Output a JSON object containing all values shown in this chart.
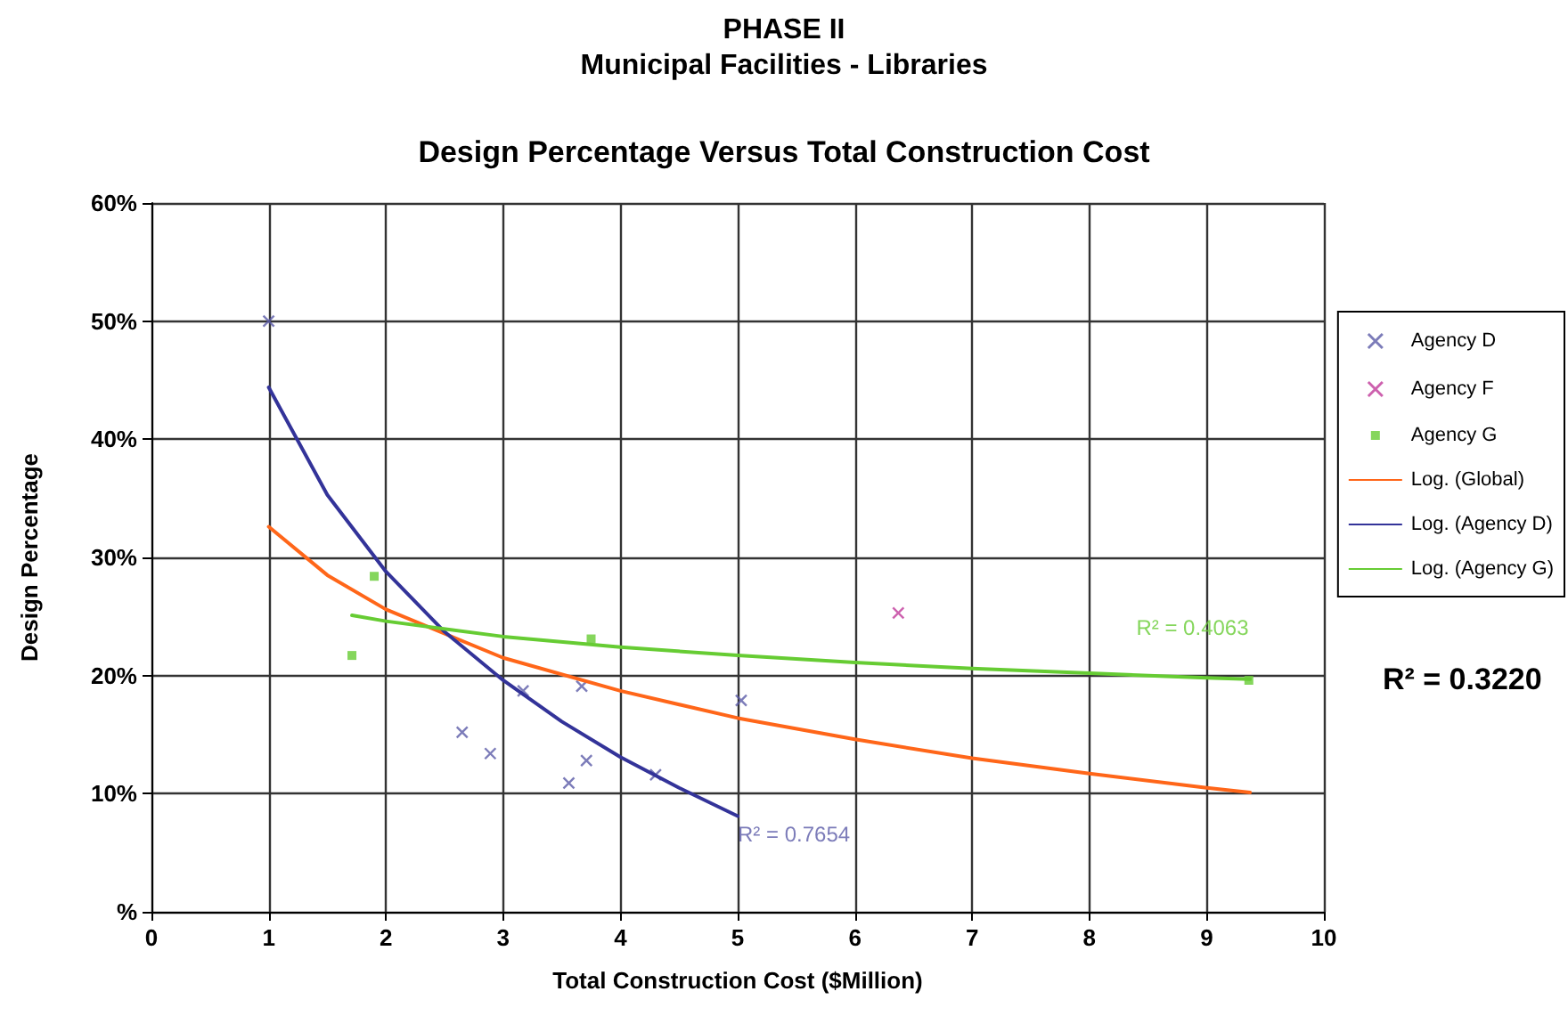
{
  "chart_data": {
    "type": "scatter",
    "title": "PHASE II",
    "subtitle": "Municipal Facilities - Libraries",
    "xlabel": "Total Construction Cost ($Million)",
    "ylabel": "Design Percentage",
    "xlim": [
      0,
      10
    ],
    "xticks": [
      0,
      1,
      2,
      3,
      4,
      5,
      6,
      7,
      8,
      9,
      10
    ],
    "ylim": [
      0,
      60
    ],
    "yticks": [
      {
        "value": 0,
        "label": "%"
      },
      {
        "value": 10,
        "label": "10%"
      },
      {
        "value": 20,
        "label": "20%"
      },
      {
        "value": 30,
        "label": "30%"
      },
      {
        "value": 40,
        "label": "40%"
      },
      {
        "value": 50,
        "label": "50%"
      },
      {
        "value": 60,
        "label": "60%"
      }
    ],
    "grid": true,
    "legend": "right",
    "annotations": [
      "Design Percentage Versus Total Construction Cost",
      "R² = 0.3220",
      {
        "text": "R² = 0.7654",
        "x": 5,
        "y": 8.1
      },
      {
        "text": "R² = 0.4063",
        "x": 8.4,
        "y": 20.1
      }
    ],
    "series": [
      {
        "name": "Agency D",
        "marker": "cross",
        "color": "#5b5ba8",
        "x": [
          1.0,
          2.65,
          2.89,
          3.17,
          3.56,
          3.67,
          3.71,
          4.3,
          5.03
        ],
        "values": [
          50,
          15.2,
          13.4,
          18.7,
          10.9,
          19.1,
          12.8,
          11.6,
          17.9
        ]
      },
      {
        "name": "Agency F",
        "marker": "cross",
        "color": "#c0399a",
        "x": [
          6.37
        ],
        "values": [
          25.3
        ]
      },
      {
        "name": "Agency G",
        "marker": "square",
        "color": "#66cc33",
        "x": [
          1.9,
          1.71,
          3.75,
          9.36
        ],
        "values": [
          28.4,
          21.7,
          23.1,
          19.6
        ]
      },
      {
        "name": "Log. (Global)",
        "type": "line",
        "marker": "none",
        "line_style": "solid",
        "color": "#ff6619",
        "x": [
          1,
          1.5,
          2,
          3,
          4,
          5,
          6,
          7,
          8,
          9,
          9.37
        ],
        "values": [
          32.6,
          28.5,
          25.6,
          21.5,
          18.7,
          16.4,
          14.6,
          13.0,
          11.7,
          10.5,
          10.1
        ]
      },
      {
        "name": "Log. (Agency D)",
        "type": "line",
        "marker": "none",
        "line_style": "solid",
        "color": "#333399",
        "x": [
          1,
          1.5,
          2,
          2.5,
          3,
          3.5,
          4,
          4.5,
          5
        ],
        "values": [
          44.4,
          35.3,
          28.8,
          23.7,
          19.6,
          16.1,
          13.1,
          10.5,
          8.1
        ]
      },
      {
        "name": "Log. (Agency G)",
        "type": "line",
        "marker": "none",
        "line_style": "solid",
        "color": "#66cc33",
        "x": [
          1.71,
          2,
          3,
          4,
          5,
          6,
          7,
          8,
          9,
          9.37
        ],
        "values": [
          25.1,
          24.6,
          23.3,
          22.4,
          21.7,
          21.1,
          20.6,
          20.2,
          19.8,
          19.7
        ]
      }
    ]
  }
}
